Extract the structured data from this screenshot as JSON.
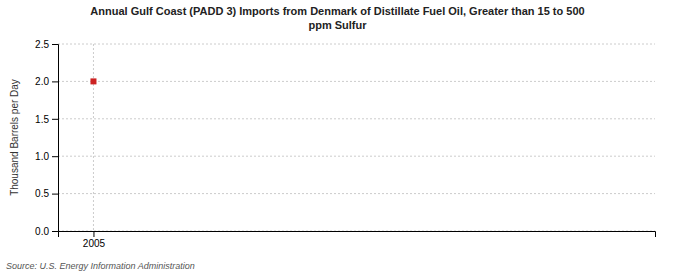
{
  "chart_data": {
    "type": "scatter",
    "title": "Annual Gulf Coast (PADD 3) Imports from Denmark of Distillate Fuel Oil, Greater than 15 to 500\nppm Sulfur",
    "y_label": "Thousand Barrels per Day",
    "source": "Source: U.S. Energy Information Administration",
    "x": [
      2005
    ],
    "values": [
      2.0
    ],
    "color": "#cc2222",
    "marker": "square",
    "xlim": [
      2004.4,
      2014.5
    ],
    "xticks": [
      2005
    ],
    "ylim": [
      0.0,
      2.5
    ],
    "yticks": [
      {
        "value": 0,
        "label": "0.0"
      },
      0.5,
      {
        "value": 1,
        "label": "1.0"
      },
      1.5,
      {
        "value": 2,
        "label": "2.0"
      },
      2.5
    ],
    "grid": true
  }
}
